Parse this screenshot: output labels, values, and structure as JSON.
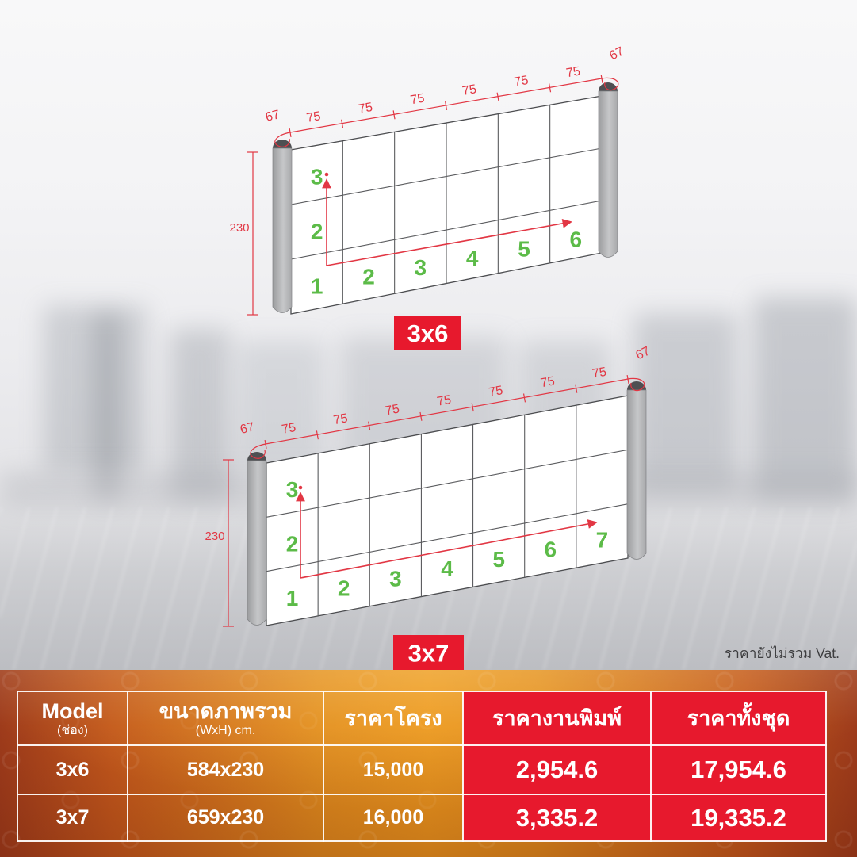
{
  "diagrams": [
    {
      "label": "3x6",
      "rows": 3,
      "cols": 6,
      "segment_label": "75",
      "end_label": "67",
      "height_label": "230"
    },
    {
      "label": "3x7",
      "rows": 3,
      "cols": 7,
      "segment_label": "75",
      "end_label": "67",
      "height_label": "230"
    }
  ],
  "vat_note": "ราคายังไม่รวม Vat.",
  "table": {
    "headers": [
      {
        "line1": "Model",
        "line2": "(ช่อง)"
      },
      {
        "line1": "ขนาดภาพรวม",
        "line2": "(WxH) cm."
      },
      {
        "line1": "ราคาโครง",
        "line2": ""
      },
      {
        "line1": "ราคางานพิมพ์",
        "line2": ""
      },
      {
        "line1": "ราคาทั้งชุด",
        "line2": ""
      }
    ],
    "rows": [
      [
        "3x6",
        "584x230",
        "15,000",
        "2,954.6",
        "17,954.6"
      ],
      [
        "3x7",
        "659x230",
        "16,000",
        "3,335.2",
        "19,335.2"
      ]
    ]
  },
  "colors": {
    "accent_red": "#e7192d",
    "dim_red": "#e23744",
    "grid_green": "#5cbb48"
  }
}
